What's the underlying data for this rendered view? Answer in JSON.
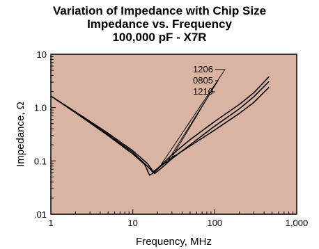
{
  "chart_data": {
    "type": "line",
    "title_lines": [
      "Variation of Impedance with Chip Size",
      "Impedance vs. Frequency",
      "100,000 pF - X7R"
    ],
    "xlabel": "Frequency, MHz",
    "ylabel": "Impedance, Ω",
    "x_scale": "log",
    "y_scale": "log",
    "xlim": [
      1,
      1000
    ],
    "ylim": [
      0.01,
      10
    ],
    "x_ticks": [
      1,
      10,
      100,
      1000
    ],
    "x_tick_labels": [
      "1",
      "10",
      "100",
      "1,000"
    ],
    "y_ticks": [
      0.01,
      0.1,
      1,
      10
    ],
    "y_tick_labels": [
      ".01",
      "0.1",
      "1.0",
      "10"
    ],
    "plot_background": "#d9b4a2",
    "line_color": "#000000",
    "series": [
      {
        "name": "1206",
        "x": [
          1,
          2,
          5,
          10,
          15,
          17.5,
          20,
          30,
          50,
          100,
          200,
          300,
          460
        ],
        "y": [
          1.65,
          0.82,
          0.31,
          0.145,
          0.08,
          0.062,
          0.072,
          0.13,
          0.25,
          0.55,
          1.15,
          1.9,
          3.8
        ]
      },
      {
        "name": "0805",
        "x": [
          1,
          2,
          5,
          10,
          15,
          18.5,
          22,
          30,
          50,
          100,
          200,
          300,
          460
        ],
        "y": [
          1.65,
          0.83,
          0.33,
          0.155,
          0.09,
          0.058,
          0.072,
          0.11,
          0.2,
          0.45,
          0.95,
          1.6,
          3.1
        ]
      },
      {
        "name": "1210",
        "x": [
          1,
          2,
          5,
          10,
          14,
          16,
          18,
          22,
          30,
          50,
          100,
          200,
          300,
          460
        ],
        "y": [
          1.65,
          0.8,
          0.3,
          0.135,
          0.085,
          0.054,
          0.06,
          0.08,
          0.115,
          0.19,
          0.38,
          0.78,
          1.25,
          2.4
        ]
      }
    ],
    "series_label_positions": "top-right, stacked labels with leader lines to curve ends"
  }
}
